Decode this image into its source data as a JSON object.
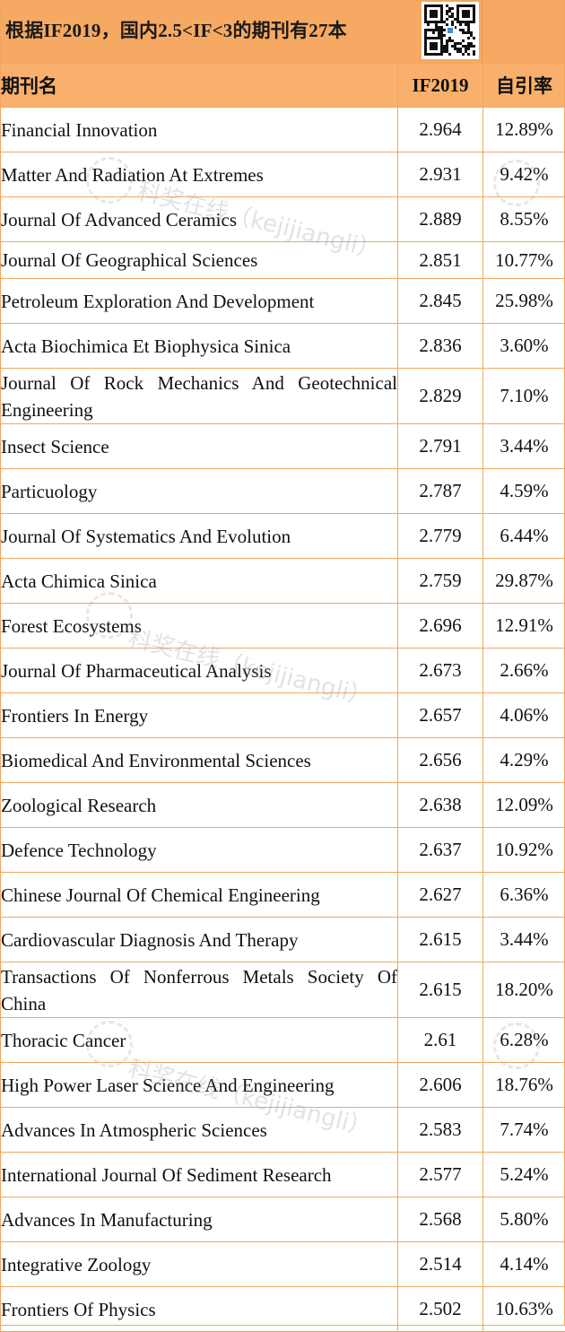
{
  "header": {
    "title": "根据IF2019，国内2.5<IF<3的期刊有27本",
    "qr_name": "qr-code"
  },
  "table": {
    "columns": [
      "期刊名",
      "IF2019",
      "自引率"
    ],
    "rows": [
      {
        "name": "Financial Innovation",
        "if": "2.964",
        "rate": "12.89%"
      },
      {
        "name": "Matter And Radiation At Extremes",
        "if": "2.931",
        "rate": "9.42%"
      },
      {
        "name": "Journal Of Advanced Ceramics",
        "if": "2.889",
        "rate": "8.55%"
      },
      {
        "name": "Journal Of Geographical Sciences",
        "if": "2.851",
        "rate": "10.77%"
      },
      {
        "name": "Petroleum Exploration And Development",
        "if": "2.845",
        "rate": "25.98%"
      },
      {
        "name": "Acta Biochimica Et Biophysica Sinica",
        "if": "2.836",
        "rate": "3.60%"
      },
      {
        "name": "Journal Of Rock Mechanics And Geotechnical Engineering",
        "if": "2.829",
        "rate": "7.10%"
      },
      {
        "name": "Insect Science",
        "if": "2.791",
        "rate": "3.44%"
      },
      {
        "name": "Particuology",
        "if": "2.787",
        "rate": "4.59%"
      },
      {
        "name": "Journal Of Systematics And Evolution",
        "if": "2.779",
        "rate": "6.44%"
      },
      {
        "name": "Acta Chimica Sinica",
        "if": "2.759",
        "rate": "29.87%"
      },
      {
        "name": "Forest Ecosystems",
        "if": "2.696",
        "rate": "12.91%"
      },
      {
        "name": "Journal Of Pharmaceutical Analysis",
        "if": "2.673",
        "rate": "2.66%"
      },
      {
        "name": "Frontiers In Energy",
        "if": "2.657",
        "rate": "4.06%"
      },
      {
        "name": "Biomedical And Environmental Sciences",
        "if": "2.656",
        "rate": "4.29%"
      },
      {
        "name": "Zoological Research",
        "if": "2.638",
        "rate": "12.09%"
      },
      {
        "name": "Defence Technology",
        "if": "2.637",
        "rate": "10.92%"
      },
      {
        "name": "Chinese Journal Of Chemical Engineering",
        "if": "2.627",
        "rate": "6.36%"
      },
      {
        "name": "Cardiovascular Diagnosis And Therapy",
        "if": "2.615",
        "rate": "3.44%"
      },
      {
        "name": "Transactions Of Nonferrous Metals Society Of China",
        "if": "2.615",
        "rate": "18.20%"
      },
      {
        "name": "Thoracic Cancer",
        "if": "2.61",
        "rate": "6.28%"
      },
      {
        "name": "High Power Laser Science And Engineering",
        "if": "2.606",
        "rate": "18.76%"
      },
      {
        "name": "Advances In Atmospheric Sciences",
        "if": "2.583",
        "rate": "7.74%"
      },
      {
        "name": "International Journal Of Sediment Research",
        "if": "2.577",
        "rate": "5.24%"
      },
      {
        "name": "Advances In Manufacturing",
        "if": "2.568",
        "rate": "5.80%"
      },
      {
        "name": "Integrative Zoology",
        "if": "2.514",
        "rate": "4.14%"
      },
      {
        "name": "Frontiers Of Physics",
        "if": "2.502",
        "rate": "10.63%"
      }
    ]
  },
  "watermark": {
    "text": "科奖在线（kejijiangli）"
  }
}
